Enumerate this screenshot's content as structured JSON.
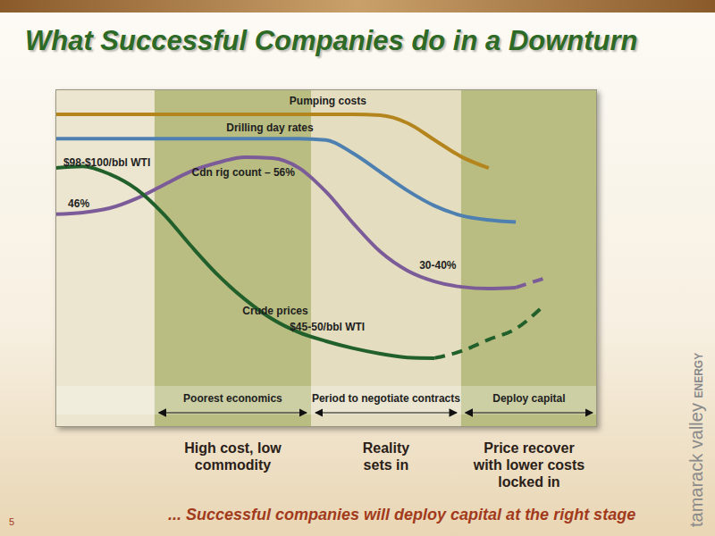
{
  "chart_data": {
    "type": "line",
    "title": "What Successful Companies do in a Downturn",
    "footer": "... Successful companies will deploy capital at the right stage",
    "page": 5,
    "logo": {
      "text": "tamarack valley",
      "sub": "ENERGY"
    },
    "x": [
      0,
      5,
      10,
      15,
      20,
      25,
      30,
      35,
      40,
      45,
      50,
      55,
      60,
      65,
      70,
      75,
      80,
      85,
      90
    ],
    "xlim": [
      0,
      100
    ],
    "ylim": [
      0,
      100
    ],
    "tick_labels": false,
    "grid": false,
    "series": [
      {
        "name": "Pumping costs",
        "color": "#b5851d",
        "values": [
          92.6,
          92.6,
          92.6,
          92.6,
          92.6,
          92.6,
          92.6,
          92.6,
          92.6,
          92.6,
          92.6,
          92.6,
          92.3,
          90,
          85,
          80,
          76.7,
          null,
          null
        ],
        "label_at": {
          "x": 50.3,
          "y": 96.6
        }
      },
      {
        "name": "Drilling day rates",
        "color": "#4d7fb0",
        "values": [
          85.4,
          85.4,
          85.4,
          85.4,
          85.4,
          85.4,
          85.4,
          85.4,
          85.4,
          85.4,
          85,
          81,
          75.5,
          70,
          65.5,
          62.6,
          61.3,
          60.7,
          null
        ],
        "label_at": {
          "x": 39.6,
          "y": 88.6
        }
      },
      {
        "name": "Cdn rig count – 56%",
        "color": "#7b5c98",
        "values": [
          63,
          63.5,
          64.8,
          67.7,
          71.7,
          75.7,
          78.3,
          79.9,
          79.6,
          76.7,
          69.6,
          60.3,
          51.9,
          46.3,
          43.1,
          41.5,
          41,
          41.3,
          null
        ],
        "projection": [
          null,
          null,
          null,
          null,
          null,
          null,
          null,
          null,
          null,
          null,
          null,
          null,
          null,
          null,
          null,
          null,
          null,
          41.3,
          43.9
        ],
        "label_at": {
          "x": 34.7,
          "y": 75.5
        }
      },
      {
        "name": "Crude prices",
        "color": "#215f2b",
        "values": [
          76.7,
          77.2,
          74.9,
          70.4,
          63,
          53.7,
          45,
          37.8,
          32,
          28,
          25.4,
          23.3,
          21.7,
          20.6,
          20.4,
          null,
          null,
          null,
          null
        ],
        "projection": [
          null,
          null,
          null,
          null,
          null,
          null,
          null,
          null,
          null,
          null,
          null,
          null,
          null,
          null,
          20.4,
          22.5,
          25.9,
          29.1,
          35.7
        ],
        "label_at": {
          "x": 40.6,
          "y": 34.4
        }
      }
    ],
    "annotations": [
      {
        "text": "$98-$100/bbl WTI",
        "x": 9.5,
        "y": 78.3
      },
      {
        "text": "46%",
        "x": 4.3,
        "y": 66.1
      },
      {
        "text": "30-40%",
        "x": 70.6,
        "y": 47.9
      },
      {
        "text": "$45-50/bbl WTI",
        "x": 50.2,
        "y": 29.6
      }
    ],
    "phases": [
      {
        "label": "Poorest economics",
        "caption": "High cost, low commodity",
        "x": [
          18.3,
          47.2
        ],
        "color": "#b9bd82"
      },
      {
        "label": "Period to negotiate contracts",
        "caption": "Reality sets in",
        "x": [
          47.2,
          74.9
        ],
        "color": "#e4ddc0"
      },
      {
        "label": "Deploy capital",
        "caption": "Price recover with lower costs locked in",
        "x": [
          74.9,
          100
        ],
        "color": "#b9bd82"
      }
    ]
  }
}
